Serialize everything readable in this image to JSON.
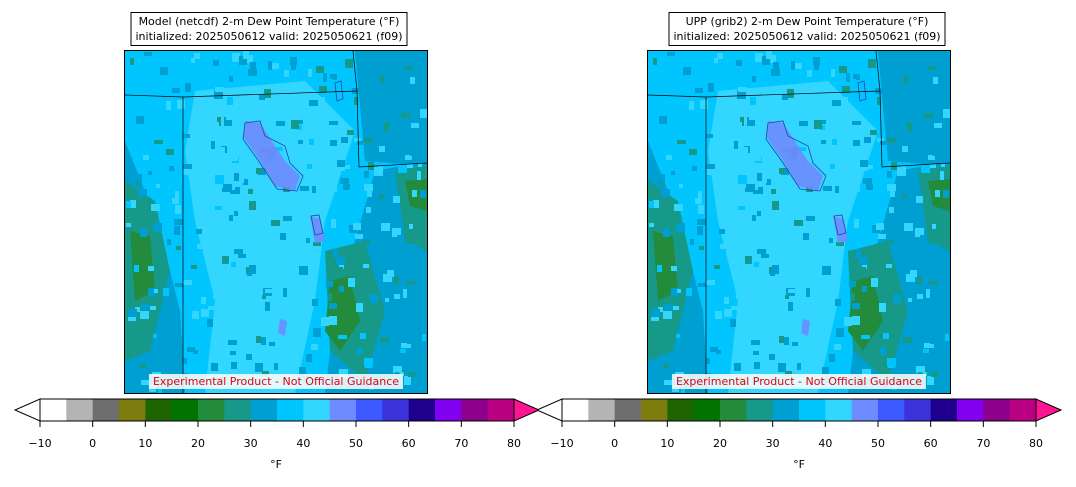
{
  "panels": [
    {
      "title_line1": "Model (netcdf) 2-m Dew Point Temperature (°F)",
      "title_line2": "initialized: 2025050612 valid: 2025050621 (f09)",
      "disclaimer": "Experimental Product - Not Official Guidance"
    },
    {
      "title_line1": "UPP (grib2) 2-m Dew Point Temperature (°F)",
      "title_line2": "initialized: 2025050612 valid: 2025050621 (f09)",
      "disclaimer": "Experimental Product - Not Official Guidance"
    }
  ],
  "colorbar": {
    "unit_label": "°F",
    "min": -10,
    "max": 80,
    "tick_labels": [
      "−10",
      "0",
      "10",
      "20",
      "30",
      "40",
      "50",
      "60",
      "70",
      "80"
    ],
    "tick_values": [
      -10,
      0,
      10,
      20,
      30,
      40,
      50,
      60,
      70,
      80
    ],
    "under_color": "#ffffff",
    "over_color": "#ff1493",
    "colors": [
      "#ffffff",
      "#b4b4b4",
      "#6e6e6e",
      "#7d7d0f",
      "#1e6400",
      "#007300",
      "#228b3c",
      "#17998a",
      "#009fd2",
      "#00c5ff",
      "#33d6ff",
      "#6e8cff",
      "#3c5aff",
      "#3c32dc",
      "#1e008c",
      "#8200f0",
      "#8c008c",
      "#b90082"
    ]
  },
  "map_colors": {
    "base": "#00c5ff",
    "light": "#33d6ff",
    "mid": "#009fd2",
    "teal": "#17998a",
    "green": "#228b3c",
    "violet": "#6e8cff",
    "border": "#000000"
  }
}
